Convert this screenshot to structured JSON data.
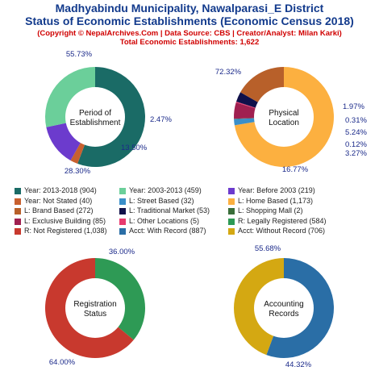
{
  "header": {
    "title1": "Madhyabindu Municipality, Nawalparasi_E District",
    "title2": "Status of Economic Establishments (Economic Census 2018)",
    "copyright": "(Copyright © NepalArchives.Com | Data Source: CBS | Creator/Analyst: Milan Karki)",
    "total": "Total Economic Establishments: 1,622"
  },
  "chart_data": [
    {
      "type": "pie",
      "title": "Period of Establishment",
      "center_lines": [
        "Period of",
        "Establishment"
      ],
      "slices": [
        {
          "label": "Year: 2013-2018",
          "value": 904,
          "percent": "55.73%",
          "color": "#1a6b66"
        },
        {
          "label": "Year: Not Stated",
          "value": 40,
          "percent": "2.47%",
          "color": "#c8602f"
        },
        {
          "label": "Year: Before 2003",
          "value": 219,
          "percent": "13.50%",
          "color": "#6c3bcd"
        },
        {
          "label": "Year: 2003-2013",
          "value": 459,
          "percent": "28.30%",
          "color": "#6bcf9a"
        }
      ]
    },
    {
      "type": "pie",
      "title": "Physical Location",
      "center_lines": [
        "Physical",
        "Location"
      ],
      "slices": [
        {
          "label": "L: Home Based",
          "value": 1173,
          "percent": "72.32%",
          "color": "#fcb040"
        },
        {
          "label": "L: Street Based",
          "value": 32,
          "percent": "1.97%",
          "color": "#3a8fc9"
        },
        {
          "label": "L: Shopping Mall",
          "value": 2,
          "percent": "0.12%",
          "color": "#3a6e3a"
        },
        {
          "label": "L: Exclusive Building",
          "value": 85,
          "percent": "5.24%",
          "color": "#a02050"
        },
        {
          "label": "L: Other Locations",
          "value": 5,
          "percent": "0.31%",
          "color": "#e83a6e"
        },
        {
          "label": "L: Traditional Market",
          "value": 53,
          "percent": "3.27%",
          "color": "#10104a"
        },
        {
          "label": "L: Brand Based",
          "value": 272,
          "percent": "16.77%",
          "color": "#b8602a"
        }
      ],
      "label_order": [
        "L: Home Based",
        "L: Street Based",
        "L: Other Locations",
        "L: Exclusive Building",
        "L: Shopping Mall",
        "L: Traditional Market",
        "L: Brand Based"
      ]
    },
    {
      "type": "pie",
      "title": "Registration Status",
      "center_lines": [
        "Registration",
        "Status"
      ],
      "slices": [
        {
          "label": "R: Legally Registered",
          "value": 584,
          "percent": "36.00%",
          "color": "#2e9a55"
        },
        {
          "label": "R: Not Registered",
          "value": 1038,
          "percent": "64.00%",
          "color": "#c8392e"
        }
      ]
    },
    {
      "type": "pie",
      "title": "Accounting Records",
      "center_lines": [
        "Accounting",
        "Records"
      ],
      "slices": [
        {
          "label": "Acct: With Record",
          "value": 887,
          "percent": "55.68%",
          "color": "#2a6ea6"
        },
        {
          "label": "Acct: Without Record",
          "value": 706,
          "percent": "44.32%",
          "color": "#d4a812"
        }
      ]
    }
  ],
  "legend": [
    {
      "text": "Year: 2013-2018 (904)",
      "color": "#1a6b66"
    },
    {
      "text": "Year: 2003-2013 (459)",
      "color": "#6bcf9a"
    },
    {
      "text": "Year: Before 2003 (219)",
      "color": "#6c3bcd"
    },
    {
      "text": "Year: Not Stated (40)",
      "color": "#c8602f"
    },
    {
      "text": "L: Street Based (32)",
      "color": "#3a8fc9"
    },
    {
      "text": "L: Home Based (1,173)",
      "color": "#fcb040"
    },
    {
      "text": "L: Brand Based (272)",
      "color": "#b8602a"
    },
    {
      "text": "L: Traditional Market (53)",
      "color": "#10104a"
    },
    {
      "text": "L: Shopping Mall (2)",
      "color": "#3a6e3a"
    },
    {
      "text": "L: Exclusive Building (85)",
      "color": "#a02050"
    },
    {
      "text": "L: Other Locations (5)",
      "color": "#e83a6e"
    },
    {
      "text": "R: Legally Registered (584)",
      "color": "#2e9a55"
    },
    {
      "text": "R: Not Registered (1,038)",
      "color": "#c8392e"
    },
    {
      "text": "Acct: With Record (887)",
      "color": "#2a6ea6"
    },
    {
      "text": "Acct: Without Record (706)",
      "color": "#d4a812"
    }
  ]
}
